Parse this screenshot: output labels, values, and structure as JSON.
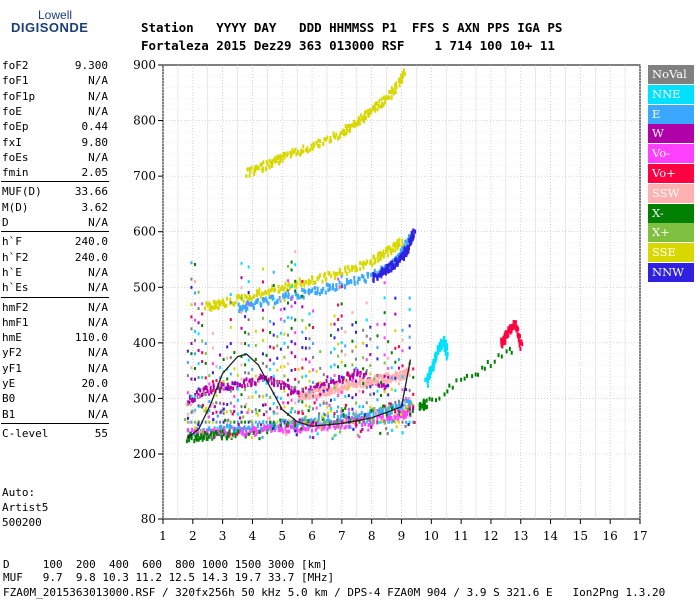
{
  "logo": {
    "line1": "Lowell",
    "line2": "DIGISONDE"
  },
  "header": {
    "row1": "Station   YYYY DAY   DDD HHMMSS P1  FFS S AXN PPS IGA PS",
    "row2": "Fortaleza 2015 Dez29 363 013000 RSF    1 714 100 10+ 11"
  },
  "params": [
    {
      "name": "foF2",
      "value": "9.300"
    },
    {
      "name": "foF1",
      "value": "N/A"
    },
    {
      "name": "foF1p",
      "value": "N/A"
    },
    {
      "name": "foE",
      "value": "N/A"
    },
    {
      "name": "foEp",
      "value": "0.44"
    },
    {
      "name": "fxI",
      "value": "9.80"
    },
    {
      "name": "foEs",
      "value": "N/A"
    },
    {
      "name": "fmin",
      "value": "2.05"
    },
    {
      "name": "MUF(D)",
      "value": "33.66"
    },
    {
      "name": "M(D)",
      "value": "3.62"
    },
    {
      "name": "D",
      "value": "N/A"
    },
    {
      "name": "h`F",
      "value": "240.0"
    },
    {
      "name": "h`F2",
      "value": "240.0"
    },
    {
      "name": "h`E",
      "value": "N/A"
    },
    {
      "name": "h`Es",
      "value": "N/A"
    },
    {
      "name": "hmF2",
      "value": "N/A"
    },
    {
      "name": "hmF1",
      "value": "N/A"
    },
    {
      "name": "hmE",
      "value": "110.0"
    },
    {
      "name": "yF2",
      "value": "N/A"
    },
    {
      "name": "yF1",
      "value": "N/A"
    },
    {
      "name": "yE",
      "value": "20.0"
    },
    {
      "name": "B0",
      "value": "N/A"
    },
    {
      "name": "B1",
      "value": "N/A"
    },
    {
      "name": "C-level",
      "value": "55"
    }
  ],
  "auto": {
    "line1": "Auto:",
    "line2": "Artist5",
    "line3": "500200"
  },
  "legend": [
    {
      "label": "NoVal",
      "color": "#808080"
    },
    {
      "label": "NNE",
      "color": "#00e0ff"
    },
    {
      "label": "E",
      "color": "#3aa8ff"
    },
    {
      "label": "W",
      "color": "#b000a8"
    },
    {
      "label": "Vo-",
      "color": "#ff40ff"
    },
    {
      "label": "Vo+",
      "color": "#ff0040"
    },
    {
      "label": "SSW",
      "color": "#ffb0b0"
    },
    {
      "label": "X-",
      "color": "#008000"
    },
    {
      "label": "X+",
      "color": "#80c040"
    },
    {
      "label": "SSE",
      "color": "#d8d800"
    },
    {
      "label": "NNW",
      "color": "#3020e0"
    }
  ],
  "footer": {
    "d_row": "D     100  200  400  600  800 1000 1500 3000 [km]",
    "muf_row": "MUF   9.7  9.8 10.3 11.2 12.5 14.3 19.7 33.7 [MHz]",
    "info_row": "FZA0M_2015363013000.RSF / 320fx256h 50 kHz 5.0 km / DPS-4 FZA0M 904 / 3.9 S 321.6 E   Ion2Png 1.3.20"
  },
  "chart_data": {
    "type": "scatter",
    "title": "",
    "xlabel": "",
    "ylabel": "",
    "xlim": [
      1,
      17
    ],
    "ylim": [
      80,
      900
    ],
    "x_ticks": [
      1,
      2,
      3,
      4,
      5,
      6,
      7,
      8,
      9,
      10,
      11,
      12,
      13,
      14,
      15,
      16,
      17
    ],
    "y_ticks": [
      80,
      200,
      300,
      400,
      500,
      600,
      700,
      800,
      900
    ],
    "grid": true,
    "series": [
      {
        "name": "E",
        "color": "#3aa8ff",
        "x": [
          1.8,
          3,
          4,
          5,
          6,
          7,
          8,
          8.8,
          9.3
        ],
        "y": [
          243,
          247,
          252,
          257,
          262,
          268,
          276,
          285,
          298
        ]
      },
      {
        "name": "E",
        "color": "#3aa8ff",
        "x": [
          3.5,
          4,
          5,
          6,
          7,
          8,
          8.6,
          9.0,
          9.3
        ],
        "y": [
          466,
          472,
          485,
          496,
          509,
          524,
          541,
          565,
          598
        ]
      },
      {
        "name": "SSE",
        "color": "#d8d800",
        "x": [
          2.4,
          3,
          4,
          5,
          6,
          7,
          8,
          8.5,
          9.0
        ],
        "y": [
          468,
          474,
          490,
          503,
          516,
          531,
          550,
          568,
          585
        ]
      },
      {
        "name": "SSE",
        "color": "#d8d800",
        "x": [
          3.8,
          4.5,
          5,
          6,
          7,
          7.5,
          8,
          8.6,
          9.1
        ],
        "y": [
          708,
          725,
          737,
          757,
          782,
          800,
          822,
          851,
          888
        ]
      },
      {
        "name": "NNW",
        "color": "#3020e0",
        "x": [
          8.0,
          8.5,
          8.9,
          9.2,
          9.4
        ],
        "y": [
          520,
          536,
          552,
          575,
          610
        ]
      },
      {
        "name": "Vo-",
        "color": "#ff40ff",
        "x": [
          1.8,
          3,
          4,
          5,
          6,
          7,
          8,
          9,
          9.3
        ],
        "y": [
          240,
          243,
          245,
          248,
          253,
          258,
          264,
          272,
          282
        ]
      },
      {
        "name": "W",
        "color": "#b000a8",
        "x": [
          1.8,
          2.5,
          3.5,
          4.5,
          5.5,
          6.5,
          7.5,
          8.5
        ],
        "y": [
          300,
          320,
          330,
          340,
          310,
          330,
          350,
          320
        ]
      },
      {
        "name": "SSW",
        "color": "#ffb0b0",
        "x": [
          5.5,
          6,
          6.5,
          7,
          7.5,
          8,
          8.5,
          9,
          9.2
        ],
        "y": [
          305,
          312,
          318,
          323,
          330,
          336,
          340,
          345,
          350
        ]
      },
      {
        "name": "NNE",
        "color": "#00e0ff",
        "x": [
          9.8,
          10.0,
          10.2,
          10.4,
          10.5
        ],
        "y": [
          330,
          360,
          390,
          410,
          380
        ]
      },
      {
        "name": "X-",
        "color": "#008000",
        "x": [
          1.8,
          2.5,
          3.5,
          9.6,
          9.8,
          12.8
        ],
        "y": [
          233,
          236,
          240,
          288,
          295,
          395
        ]
      },
      {
        "name": "Vo+",
        "color": "#ff0040",
        "x": [
          12.3,
          12.5,
          12.8,
          13.0
        ],
        "y": [
          398,
          420,
          440,
          395
        ]
      }
    ],
    "traced_profile": {
      "x": [
        1.8,
        2.2,
        2.6,
        3.0,
        3.5,
        3.8,
        4.2,
        4.6,
        5.0,
        5.5,
        6.0,
        7.0,
        8.0,
        9.0,
        9.3
      ],
      "y": [
        228,
        245,
        290,
        345,
        375,
        380,
        360,
        320,
        280,
        258,
        250,
        255,
        265,
        285,
        370
      ]
    }
  }
}
